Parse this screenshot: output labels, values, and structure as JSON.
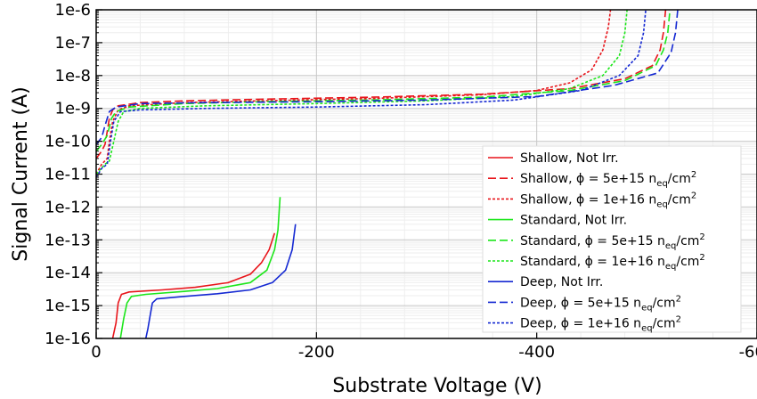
{
  "chart_data": {
    "type": "line",
    "xlabel": "Substrate Voltage (V)",
    "ylabel": "Signal Current (A)",
    "y_scale": "log",
    "xlim": [
      0,
      -600
    ],
    "ylim": [
      1e-16,
      1e-06
    ],
    "x_ticks": [
      {
        "value": 0,
        "label": "0"
      },
      {
        "value": -200,
        "label": "-200"
      },
      {
        "value": -400,
        "label": "-400"
      },
      {
        "value": -600,
        "label": "-600"
      }
    ],
    "y_ticks": [
      {
        "value": 1e-06,
        "label": "1e-6"
      },
      {
        "value": 1e-07,
        "label": "1e-7"
      },
      {
        "value": 1e-08,
        "label": "1e-8"
      },
      {
        "value": 1e-09,
        "label": "1e-9"
      },
      {
        "value": 1e-10,
        "label": "1e-10"
      },
      {
        "value": 1e-11,
        "label": "1e-11"
      },
      {
        "value": 1e-12,
        "label": "1e-12"
      },
      {
        "value": 1e-13,
        "label": "1e-13"
      },
      {
        "value": 1e-14,
        "label": "1e-14"
      },
      {
        "value": 1e-15,
        "label": "1e-15"
      },
      {
        "value": 1e-16,
        "label": "1e-16"
      }
    ],
    "grid": true,
    "legend_position": "lower-right",
    "series": [
      {
        "name": "Shallow, Not Irr.",
        "color": "#e8141a",
        "dash": "solid",
        "points": [
          [
            -15,
            1e-16
          ],
          [
            -18,
            3e-16
          ],
          [
            -20,
            1.2e-15
          ],
          [
            -23,
            2.2e-15
          ],
          [
            -30,
            2.6e-15
          ],
          [
            -60,
            3e-15
          ],
          [
            -90,
            3.6e-15
          ],
          [
            -120,
            5e-15
          ],
          [
            -140,
            9e-15
          ],
          [
            -150,
            2e-14
          ],
          [
            -157,
            5e-14
          ],
          [
            -160,
            1e-13
          ],
          [
            -162,
            1.6e-13
          ]
        ]
      },
      {
        "name": "Shallow, ϕ = 5e+15 n_eq/cm²",
        "label_main": "Shallow, ϕ = 5e+15 n",
        "color": "#e8141a",
        "dash": "dashed",
        "points": [
          [
            0,
            3e-11
          ],
          [
            -5,
            5e-11
          ],
          [
            -8,
            8e-11
          ],
          [
            -10,
            2e-10
          ],
          [
            -12,
            5e-10
          ],
          [
            -15,
            9e-10
          ],
          [
            -20,
            1.2e-09
          ],
          [
            -40,
            1.5e-09
          ],
          [
            -80,
            1.7e-09
          ],
          [
            -150,
            1.9e-09
          ],
          [
            -250,
            2.2e-09
          ],
          [
            -350,
            2.7e-09
          ],
          [
            -430,
            4e-09
          ],
          [
            -480,
            8e-09
          ],
          [
            -505,
            2e-08
          ],
          [
            -512,
            6e-08
          ],
          [
            -515,
            2e-07
          ],
          [
            -517,
            1e-06
          ]
        ]
      },
      {
        "name": "Shallow, ϕ = 1e+16 n_eq/cm²",
        "label_main": "Shallow, ϕ = 1e+16 n",
        "color": "#e8141a",
        "dash": "dotted",
        "points": [
          [
            0,
            1e-11
          ],
          [
            -5,
            2e-11
          ],
          [
            -10,
            3e-11
          ],
          [
            -12,
            1e-10
          ],
          [
            -15,
            4e-10
          ],
          [
            -20,
            9e-10
          ],
          [
            -30,
            1.2e-09
          ],
          [
            -80,
            1.5e-09
          ],
          [
            -150,
            1.7e-09
          ],
          [
            -250,
            2e-09
          ],
          [
            -350,
            2.6e-09
          ],
          [
            -400,
            3.5e-09
          ],
          [
            -430,
            6e-09
          ],
          [
            -450,
            1.5e-08
          ],
          [
            -460,
            6e-08
          ],
          [
            -465,
            3e-07
          ],
          [
            -467,
            1e-06
          ]
        ]
      },
      {
        "name": "Standard, Not Irr.",
        "color": "#1ce61a",
        "dash": "solid",
        "points": [
          [
            -22,
            1e-16
          ],
          [
            -25,
            4e-16
          ],
          [
            -28,
            1.2e-15
          ],
          [
            -32,
            1.9e-15
          ],
          [
            -45,
            2.2e-15
          ],
          [
            -80,
            2.7e-15
          ],
          [
            -110,
            3.3e-15
          ],
          [
            -140,
            5e-15
          ],
          [
            -155,
            1.2e-14
          ],
          [
            -162,
            5e-14
          ],
          [
            -165,
            2e-13
          ],
          [
            -167,
            2e-12
          ]
        ]
      },
      {
        "name": "Standard, ϕ = 5e+15 n_eq/cm²",
        "label_main": "Standard, ϕ = 5e+15 n",
        "color": "#1ce61a",
        "dash": "dashed",
        "points": [
          [
            0,
            5e-11
          ],
          [
            -5,
            8e-11
          ],
          [
            -10,
            1.5e-10
          ],
          [
            -14,
            5e-10
          ],
          [
            -18,
            8e-10
          ],
          [
            -30,
            1.1e-09
          ],
          [
            -80,
            1.4e-09
          ],
          [
            -150,
            1.6e-09
          ],
          [
            -250,
            1.8e-09
          ],
          [
            -350,
            2.2e-09
          ],
          [
            -430,
            3.5e-09
          ],
          [
            -480,
            7e-09
          ],
          [
            -508,
            2e-08
          ],
          [
            -515,
            6e-08
          ],
          [
            -519,
            2e-07
          ],
          [
            -521,
            1e-06
          ]
        ]
      },
      {
        "name": "Standard, ϕ = 1e+16 n_eq/cm²",
        "label_main": "Standard, ϕ = 1e+16 n",
        "color": "#1ce61a",
        "dash": "dotted",
        "points": [
          [
            0,
            1e-11
          ],
          [
            -8,
            2e-11
          ],
          [
            -12,
            2.5e-11
          ],
          [
            -16,
            1e-10
          ],
          [
            -20,
            4e-10
          ],
          [
            -25,
            8e-10
          ],
          [
            -40,
            1e-09
          ],
          [
            -100,
            1.2e-09
          ],
          [
            -200,
            1.4e-09
          ],
          [
            -300,
            1.7e-09
          ],
          [
            -380,
            2.3e-09
          ],
          [
            -430,
            4e-09
          ],
          [
            -460,
            1e-08
          ],
          [
            -475,
            4e-08
          ],
          [
            -480,
            2e-07
          ],
          [
            -482,
            1e-06
          ]
        ]
      },
      {
        "name": "Deep, Not Irr.",
        "color": "#1428d2",
        "dash": "solid",
        "points": [
          [
            -45,
            1e-16
          ],
          [
            -47,
            2e-16
          ],
          [
            -49,
            5e-16
          ],
          [
            -51,
            1.2e-15
          ],
          [
            -55,
            1.6e-15
          ],
          [
            -80,
            1.9e-15
          ],
          [
            -110,
            2.3e-15
          ],
          [
            -140,
            3e-15
          ],
          [
            -160,
            5e-15
          ],
          [
            -172,
            1.2e-14
          ],
          [
            -178,
            5e-14
          ],
          [
            -181,
            3e-13
          ]
        ]
      },
      {
        "name": "Deep, ϕ = 5e+15 n_eq/cm²",
        "label_main": "Deep, ϕ = 5e+15 n",
        "color": "#1428d2",
        "dash": "dashed",
        "points": [
          [
            0,
            8e-11
          ],
          [
            -5,
            1.3e-10
          ],
          [
            -8,
            3e-10
          ],
          [
            -12,
            8e-10
          ],
          [
            -18,
            1.1e-09
          ],
          [
            -40,
            1.4e-09
          ],
          [
            -100,
            1.5e-09
          ],
          [
            -200,
            1.6e-09
          ],
          [
            -300,
            1.8e-09
          ],
          [
            -400,
            2.3e-09
          ],
          [
            -470,
            5e-09
          ],
          [
            -510,
            1.2e-08
          ],
          [
            -522,
            5e-08
          ],
          [
            -526,
            2e-07
          ],
          [
            -528,
            1e-06
          ]
        ]
      },
      {
        "name": "Deep, ϕ = 1e+16 n_eq/cm²",
        "label_main": "Deep, ϕ = 1e+16 n",
        "color": "#1428d2",
        "dash": "dotted",
        "points": [
          [
            0,
            8e-12
          ],
          [
            -5,
            1.5e-11
          ],
          [
            -10,
            2e-11
          ],
          [
            -13,
            1e-10
          ],
          [
            -16,
            4e-10
          ],
          [
            -22,
            8e-10
          ],
          [
            -40,
            9e-10
          ],
          [
            -100,
            1e-09
          ],
          [
            -200,
            1.1e-09
          ],
          [
            -300,
            1.3e-09
          ],
          [
            -380,
            1.8e-09
          ],
          [
            -440,
            3.5e-09
          ],
          [
            -475,
            1e-08
          ],
          [
            -492,
            4e-08
          ],
          [
            -497,
            2e-07
          ],
          [
            -499,
            1e-06
          ]
        ]
      }
    ],
    "legend_labels": [
      {
        "main": "Shallow, Not Irr."
      },
      {
        "main": "Shallow, ϕ = 5e+15 n",
        "sub": "eq",
        "tail": "/cm",
        "sup": "2"
      },
      {
        "main": "Shallow, ϕ = 1e+16 n",
        "sub": "eq",
        "tail": "/cm",
        "sup": "2"
      },
      {
        "main": "Standard, Not Irr."
      },
      {
        "main": "Standard, ϕ = 5e+15 n",
        "sub": "eq",
        "tail": "/cm",
        "sup": "2"
      },
      {
        "main": "Standard, ϕ = 1e+16 n",
        "sub": "eq",
        "tail": "/cm",
        "sup": "2"
      },
      {
        "main": "Deep, Not Irr."
      },
      {
        "main": "Deep, ϕ = 5e+15 n",
        "sub": "eq",
        "tail": "/cm",
        "sup": "2"
      },
      {
        "main": "Deep, ϕ = 1e+16 n",
        "sub": "eq",
        "tail": "/cm",
        "sup": "2"
      }
    ]
  }
}
